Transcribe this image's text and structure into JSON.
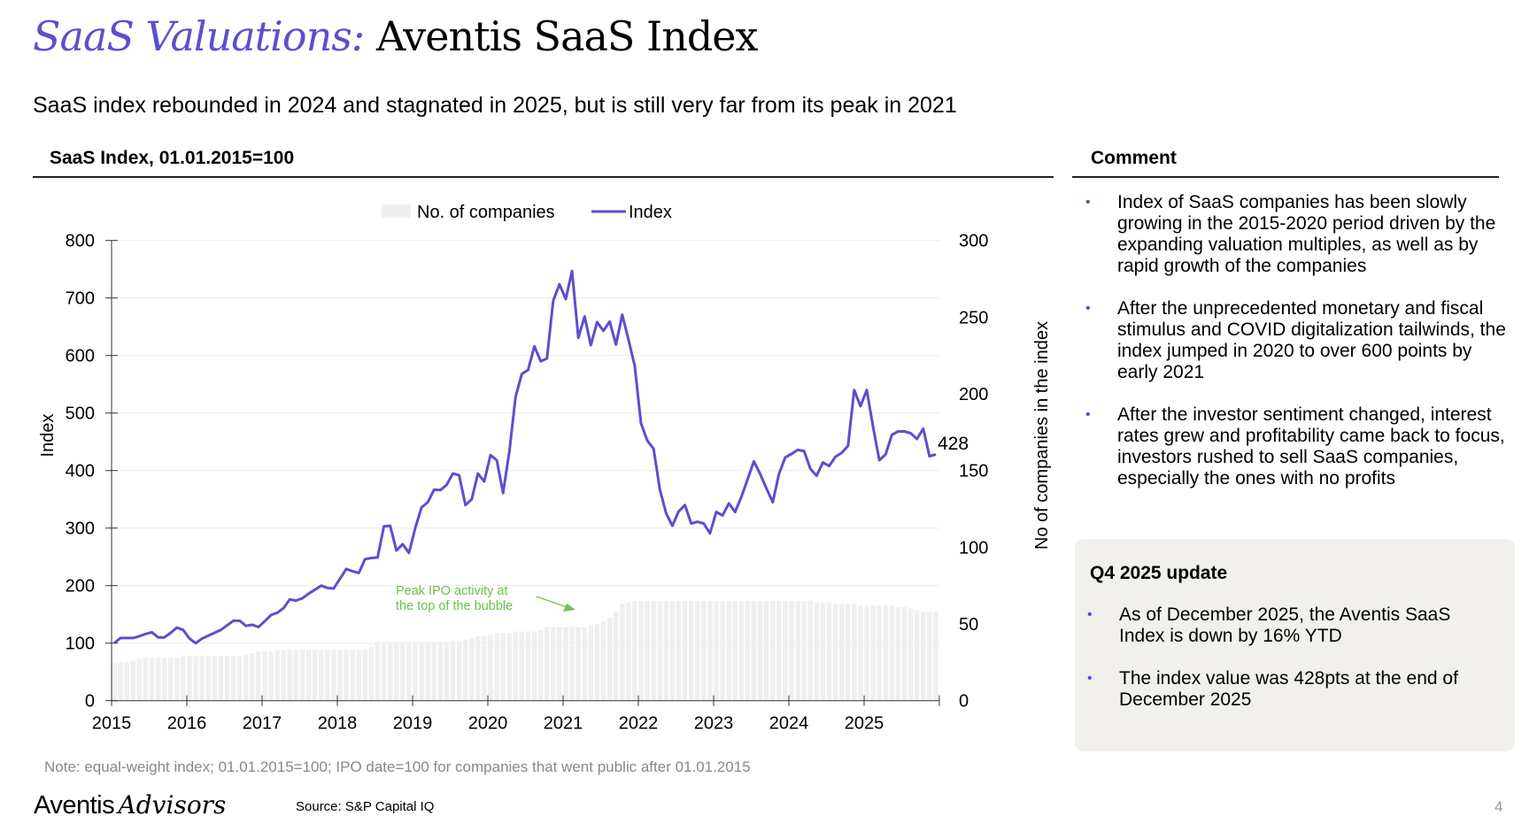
{
  "header": {
    "title_accent": "SaaS Valuations:",
    "title_main": "Aventis SaaS Index",
    "subtitle": "SaaS index rebounded in 2024 and stagnated in 2025, but is still very far from its peak in 2021"
  },
  "chart_section": {
    "heading": "SaaS Index, 01.01.2015=100"
  },
  "chart_data": {
    "type": "bar+line",
    "title": "SaaS Index, 01.01.2015=100",
    "x_start": "2015-01",
    "frequency": "monthly",
    "x_tick_labels": [
      "2015",
      "2016",
      "2017",
      "2018",
      "2019",
      "2020",
      "2021",
      "2022",
      "2023",
      "2024",
      "2025"
    ],
    "ylabel": "Index",
    "y2label": "No of companies in the index",
    "ylim": [
      0,
      800
    ],
    "y_ticks": [
      0,
      100,
      200,
      300,
      400,
      500,
      600,
      700,
      800
    ],
    "y2lim": [
      0,
      300
    ],
    "y2_ticks": [
      0,
      50,
      100,
      150,
      200,
      250,
      300
    ],
    "grid": true,
    "legend_position": "top-center",
    "legend": [
      "No. of companies",
      "Index"
    ],
    "end_label": "428",
    "annotation": {
      "lines": [
        "Peak IPO activity at",
        "the top of the bubble"
      ],
      "color": "#6cc24a"
    },
    "colors": {
      "index": "#5b4fcf",
      "companies": "#efefef",
      "grid": "#ececec"
    },
    "series": [
      {
        "name": "Index",
        "axis": "left",
        "kind": "line",
        "values": [
          100,
          109,
          109,
          109,
          112,
          116,
          119,
          110,
          110,
          118,
          127,
          123,
          108,
          100,
          108,
          113,
          118,
          123,
          131,
          139,
          139,
          130,
          132,
          128,
          138,
          149,
          153,
          161,
          176,
          174,
          178,
          186,
          193,
          200,
          196,
          195,
          212,
          229,
          225,
          222,
          246,
          248,
          249,
          303,
          304,
          261,
          272,
          257,
          300,
          336,
          345,
          367,
          366,
          375,
          395,
          392,
          340,
          350,
          395,
          381,
          427,
          418,
          361,
          433,
          528,
          568,
          575,
          616,
          590,
          595,
          695,
          724,
          698,
          747,
          631,
          668,
          618,
          658,
          643,
          659,
          619,
          671,
          628,
          582,
          482,
          452,
          438,
          367,
          326,
          304,
          329,
          340,
          308,
          311,
          308,
          291,
          328,
          322,
          343,
          328,
          354,
          385,
          416,
          394,
          369,
          345,
          394,
          423,
          429,
          436,
          434,
          403,
          391,
          414,
          408,
          424,
          431,
          443,
          540,
          512,
          540,
          476,
          418,
          428,
          462,
          468,
          468,
          465,
          455,
          473,
          425,
          428
        ]
      },
      {
        "name": "No. of companies",
        "axis": "right",
        "kind": "bar",
        "values": [
          25,
          25,
          25,
          26,
          27,
          28,
          28,
          28,
          28,
          28,
          28,
          29,
          29,
          29,
          29,
          29,
          29,
          29,
          29,
          29,
          29,
          30,
          31,
          32,
          32,
          32,
          33,
          33,
          33,
          33,
          33,
          33,
          33,
          33,
          33,
          33,
          33,
          33,
          33,
          33,
          33,
          35,
          38,
          38,
          38,
          38,
          38,
          38,
          38,
          38,
          38,
          38,
          38,
          38,
          39,
          39,
          40,
          41,
          42,
          42,
          43,
          44,
          44,
          44,
          45,
          45,
          45,
          45,
          46,
          48,
          48,
          48,
          48,
          48,
          48,
          48,
          49,
          50,
          52,
          54,
          58,
          63,
          64,
          65,
          65,
          65,
          65,
          65,
          65,
          65,
          65,
          65,
          65,
          65,
          65,
          65,
          65,
          65,
          65,
          65,
          65,
          65,
          65,
          65,
          65,
          65,
          65,
          65,
          65,
          65,
          65,
          65,
          64,
          64,
          64,
          63,
          63,
          63,
          63,
          62,
          62,
          62,
          62,
          62,
          62,
          61,
          61,
          60,
          59,
          58,
          58,
          58
        ]
      }
    ]
  },
  "comment": {
    "heading": "Comment",
    "bullets": [
      "Index of SaaS companies has been slowly growing in the 2015-2020 period driven by the expanding valuation multiples, as well as by rapid growth of the companies",
      "After the unprecedented monetary and fiscal stimulus and COVID digitalization tailwinds, the index jumped in 2020 to over 600 points by early 2021",
      "After the investor sentiment changed, interest rates grew and profitability came back to focus, investors rushed to sell SaaS companies, especially the ones with no profits"
    ]
  },
  "q4_update": {
    "heading": "Q4 2025 update",
    "bullets": [
      "As of December 2025, the Aventis SaaS Index is down by 16% YTD",
      "The index value was 428pts at the end of December 2025"
    ]
  },
  "footer": {
    "note": "Note: equal-weight index; 01.01.2015=100; IPO date=100 for companies that went public after 01.01.2015",
    "logo_part1": "Aventis",
    "logo_part2": "Advisors",
    "source": "Source: S&P Capital IQ",
    "page_number": "4"
  }
}
